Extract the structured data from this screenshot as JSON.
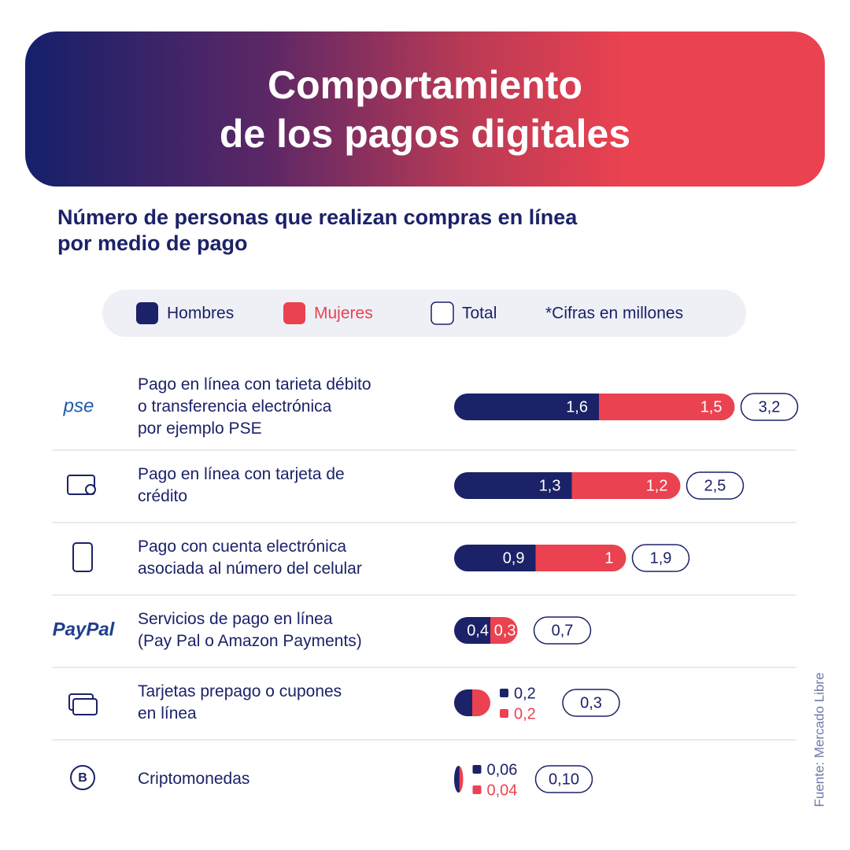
{
  "chart_data": {
    "type": "bar",
    "orientation": "horizontal",
    "stacked": true,
    "title": "Comportamiento\nde los pagos digitales",
    "subtitle": "Número de personas que realizan compras en línea\npor medio de pago",
    "note": "*Cifras en millones",
    "source": "Fuente: Mercado Libre",
    "categories": [
      "Pago en línea con tarieta débito\no transferencia electrónica\npor ejemplo PSE",
      "Pago en línea con tarjeta de\ncrédito",
      "Pago con cuenta electrónica\nasociada al número del celular",
      "Servicios de pago en línea\n(Pay Pal o Amazon Payments)",
      "Tarjetas prepago o cupones\nen línea",
      "Criptomonedas"
    ],
    "category_logos": [
      "pse",
      null,
      null,
      "PayPal",
      null,
      null
    ],
    "series": [
      {
        "name": "Hombres",
        "color": "#1b2268",
        "values": [
          1.6,
          1.3,
          0.9,
          0.4,
          0.2,
          0.06
        ],
        "value_labels": [
          "1,6",
          "1,3",
          "0,9",
          "0,4",
          "0,2",
          "0,06"
        ]
      },
      {
        "name": "Mujeres",
        "color": "#ea4250",
        "values": [
          1.5,
          1.2,
          1,
          0.3,
          0.2,
          0.04
        ],
        "value_labels": [
          "1,5",
          "1,2",
          "1",
          "0,3",
          "0,2",
          "0,04"
        ]
      },
      {
        "name": "Total",
        "color": "#1b2268",
        "outline": true,
        "values": [
          3.2,
          2.5,
          1.9,
          0.7,
          0.3,
          0.1
        ],
        "value_labels": [
          "3,2",
          "2,5",
          "1,9",
          "0,7",
          "0,3",
          "0,10"
        ]
      }
    ]
  }
}
